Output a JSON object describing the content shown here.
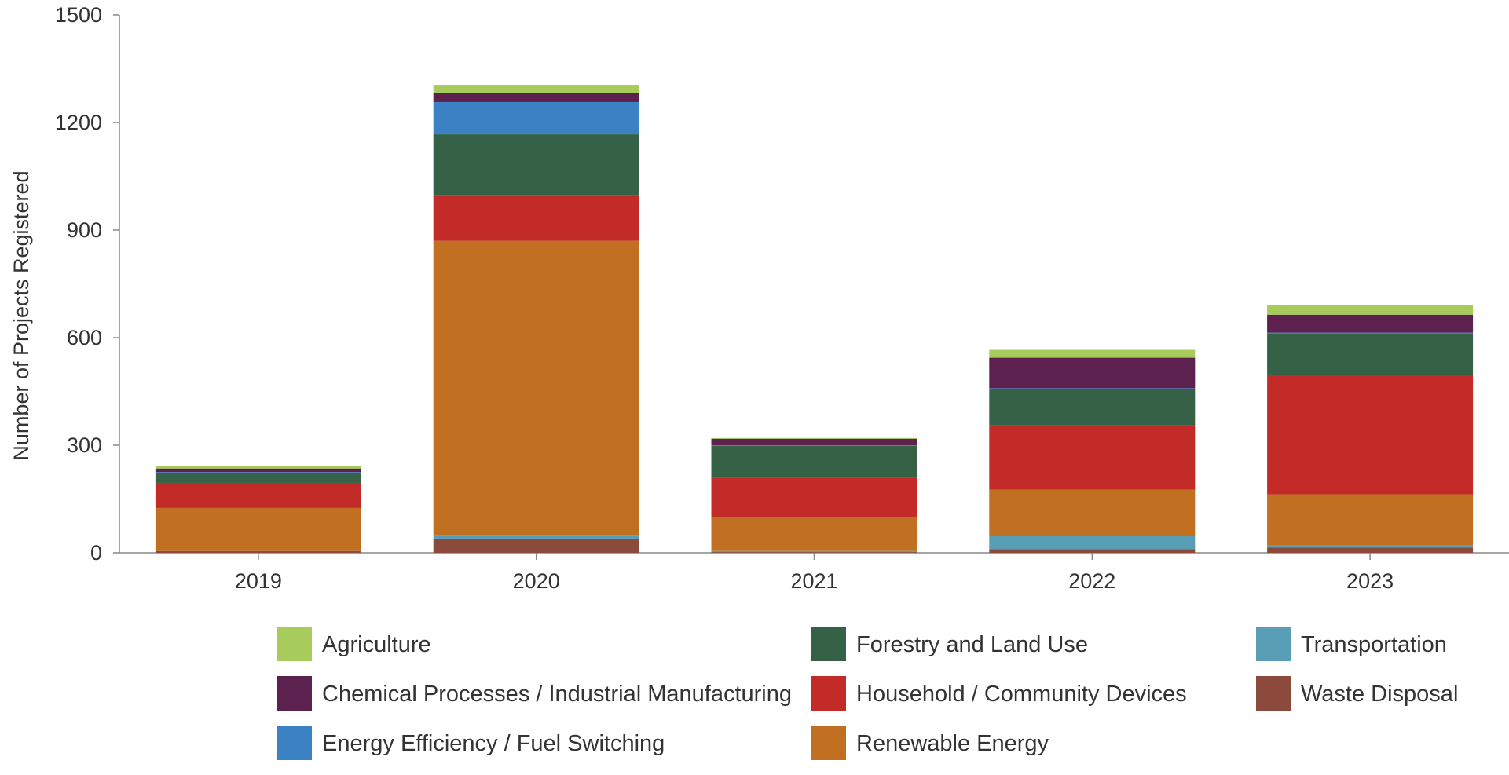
{
  "chart_data": {
    "type": "bar",
    "stacked": true,
    "title": "",
    "xlabel": "",
    "ylabel": "Number of Projects Registered",
    "ylim": [
      0,
      1500
    ],
    "yticks": [
      "0",
      "300",
      "600",
      "900",
      "1200",
      "1500"
    ],
    "categories": [
      "2019",
      "2020",
      "2021",
      "2022",
      "2023"
    ],
    "grid": false,
    "legend_position": "bottom",
    "series": [
      {
        "name": "Waste Disposal",
        "color": "#8B4A3C",
        "values": [
          5,
          38,
          2,
          10,
          15
        ]
      },
      {
        "name": "Transportation",
        "color": "#5A9EB5",
        "values": [
          0,
          12,
          3,
          38,
          5
        ]
      },
      {
        "name": "Renewable Energy",
        "color": "#C07020",
        "values": [
          120,
          820,
          95,
          128,
          143
        ]
      },
      {
        "name": "Household / Community Devices",
        "color": "#C22B27",
        "values": [
          70,
          127,
          110,
          180,
          333
        ]
      },
      {
        "name": "Forestry and Land Use",
        "color": "#356146",
        "values": [
          27,
          170,
          88,
          100,
          113
        ]
      },
      {
        "name": "Energy Efficiency / Fuel Switching",
        "color": "#3A82C4",
        "values": [
          3,
          90,
          2,
          3,
          5
        ]
      },
      {
        "name": "Chemical Processes / Industrial Manufacturing",
        "color": "#5C214E",
        "values": [
          10,
          25,
          18,
          85,
          50
        ]
      },
      {
        "name": "Agriculture",
        "color": "#A8CC5C",
        "values": [
          7,
          23,
          2,
          22,
          28
        ]
      }
    ],
    "legend_order": [
      "Agriculture",
      "Forestry and Land Use",
      "Transportation",
      "Chemical Processes / Industrial Manufacturing",
      "Household / Community Devices",
      "Waste Disposal",
      "Energy Efficiency / Fuel Switching",
      "Renewable Energy"
    ]
  }
}
